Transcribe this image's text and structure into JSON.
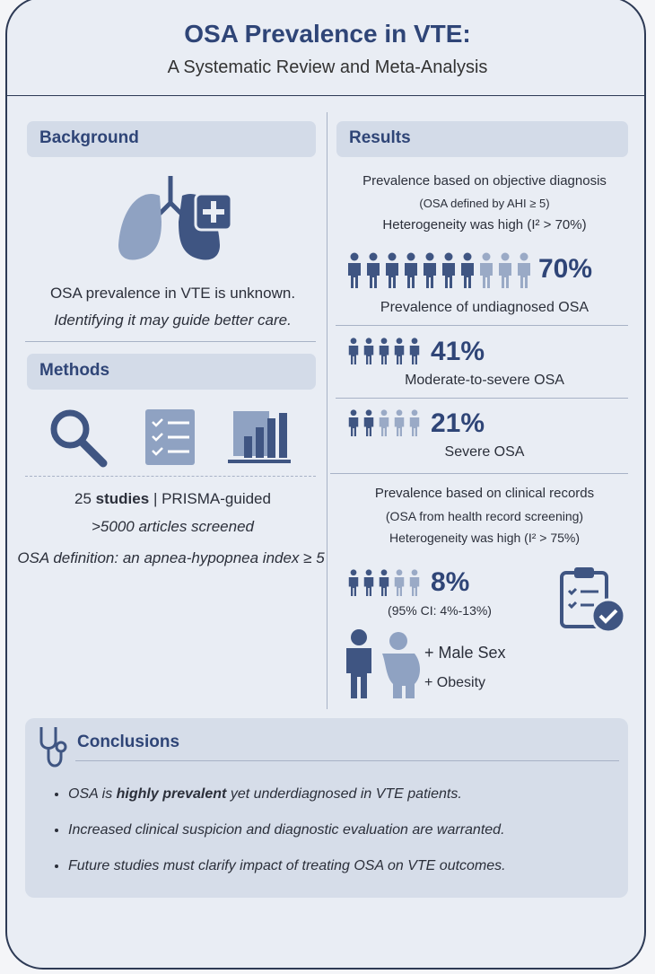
{
  "header": {
    "title": "OSA Prevalence in VTE:",
    "subtitle": "A Systematic Review and Meta-Analysis"
  },
  "background": {
    "heading": "Background",
    "lines": [
      "OSA prevalence in VTE is unknown.",
      "Identifying it may guide better care."
    ]
  },
  "methods": {
    "heading": "Methods",
    "studies": {
      "parts": [
        "25",
        "studies",
        "| PRISMA-guided"
      ]
    },
    "screened": ">5000 articles screened",
    "definition": "OSA definition: an apnea-hypopnea index ≥ 5"
  },
  "results": {
    "heading": "Results",
    "objective": {
      "lines": [
        "Prevalence based on objective diagnosis",
        "(OSA defined by AHI ≥ 5)",
        "Heterogeneity was high (I² > 70%)"
      ],
      "stats": [
        {
          "value": "70%",
          "label": "Prevalence of undiagnosed OSA"
        },
        {
          "value": "41%",
          "label": "Moderate-to-severe OSA"
        },
        {
          "value": "21%",
          "label": "Severe OSA"
        }
      ]
    },
    "clinical": {
      "lines": [
        "Prevalence based on clinical records",
        "(OSA from health record screening)",
        "Heterogeneity was high (I² > 75%)"
      ],
      "stat": {
        "value": "8%",
        "label": "(95% CI: 4%-13%)"
      },
      "risk_factors": [
        "+ Male Sex",
        "+ Obesity"
      ]
    }
  },
  "conclusions": {
    "heading": "Conclusions",
    "bullets": [
      {
        "parts": [
          "OSA is",
          "highly prevalent",
          "yet underdiagnosed in VTE patients."
        ]
      },
      {
        "parts": [
          "Increased clinical suspicion and diagnostic evaluation are warranted."
        ]
      },
      {
        "parts": [
          "Future studies must clarify impact of treating OSA on VTE outcomes."
        ]
      }
    ]
  }
}
